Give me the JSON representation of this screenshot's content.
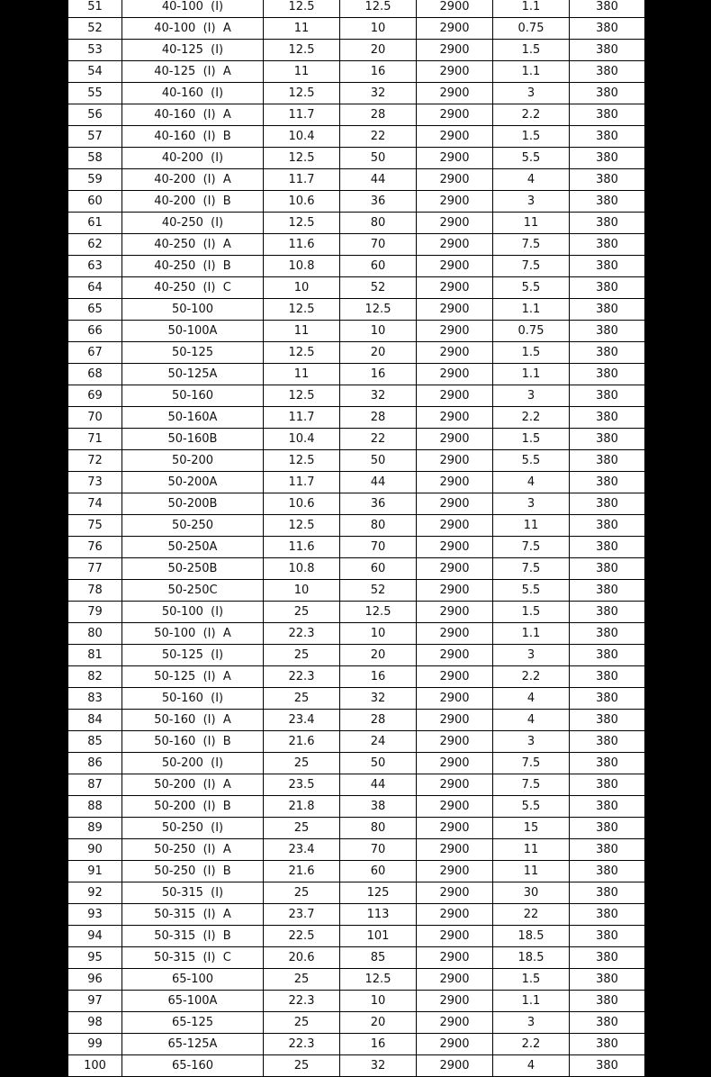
{
  "table": {
    "rows": [
      [
        "51",
        "40-100  (I)",
        "12.5",
        "12.5",
        "2900",
        "1.1",
        "380"
      ],
      [
        "52",
        "40-100  (I)  A",
        "11",
        "10",
        "2900",
        "0.75",
        "380"
      ],
      [
        "53",
        "40-125  (I)",
        "12.5",
        "20",
        "2900",
        "1.5",
        "380"
      ],
      [
        "54",
        "40-125  (I)  A",
        "11",
        "16",
        "2900",
        "1.1",
        "380"
      ],
      [
        "55",
        "40-160  (I)",
        "12.5",
        "32",
        "2900",
        "3",
        "380"
      ],
      [
        "56",
        "40-160  (I)  A",
        "11.7",
        "28",
        "2900",
        "2.2",
        "380"
      ],
      [
        "57",
        "40-160  (I)  B",
        "10.4",
        "22",
        "2900",
        "1.5",
        "380"
      ],
      [
        "58",
        "40-200  (I)",
        "12.5",
        "50",
        "2900",
        "5.5",
        "380"
      ],
      [
        "59",
        "40-200  (I)  A",
        "11.7",
        "44",
        "2900",
        "4",
        "380"
      ],
      [
        "60",
        "40-200  (I)  B",
        "10.6",
        "36",
        "2900",
        "3",
        "380"
      ],
      [
        "61",
        "40-250  (I)",
        "12.5",
        "80",
        "2900",
        "11",
        "380"
      ],
      [
        "62",
        "40-250  (I)  A",
        "11.6",
        "70",
        "2900",
        "7.5",
        "380"
      ],
      [
        "63",
        "40-250  (I)  B",
        "10.8",
        "60",
        "2900",
        "7.5",
        "380"
      ],
      [
        "64",
        "40-250  (I)  C",
        "10",
        "52",
        "2900",
        "5.5",
        "380"
      ],
      [
        "65",
        "50-100",
        "12.5",
        "12.5",
        "2900",
        "1.1",
        "380"
      ],
      [
        "66",
        "50-100A",
        "11",
        "10",
        "2900",
        "0.75",
        "380"
      ],
      [
        "67",
        "50-125",
        "12.5",
        "20",
        "2900",
        "1.5",
        "380"
      ],
      [
        "68",
        "50-125A",
        "11",
        "16",
        "2900",
        "1.1",
        "380"
      ],
      [
        "69",
        "50-160",
        "12.5",
        "32",
        "2900",
        "3",
        "380"
      ],
      [
        "70",
        "50-160A",
        "11.7",
        "28",
        "2900",
        "2.2",
        "380"
      ],
      [
        "71",
        "50-160B",
        "10.4",
        "22",
        "2900",
        "1.5",
        "380"
      ],
      [
        "72",
        "50-200",
        "12.5",
        "50",
        "2900",
        "5.5",
        "380"
      ],
      [
        "73",
        "50-200A",
        "11.7",
        "44",
        "2900",
        "4",
        "380"
      ],
      [
        "74",
        "50-200B",
        "10.6",
        "36",
        "2900",
        "3",
        "380"
      ],
      [
        "75",
        "50-250",
        "12.5",
        "80",
        "2900",
        "11",
        "380"
      ],
      [
        "76",
        "50-250A",
        "11.6",
        "70",
        "2900",
        "7.5",
        "380"
      ],
      [
        "77",
        "50-250B",
        "10.8",
        "60",
        "2900",
        "7.5",
        "380"
      ],
      [
        "78",
        "50-250C",
        "10",
        "52",
        "2900",
        "5.5",
        "380"
      ],
      [
        "79",
        "50-100  (I)",
        "25",
        "12.5",
        "2900",
        "1.5",
        "380"
      ],
      [
        "80",
        "50-100  (I)  A",
        "22.3",
        "10",
        "2900",
        "1.1",
        "380"
      ],
      [
        "81",
        "50-125  (I)",
        "25",
        "20",
        "2900",
        "3",
        "380"
      ],
      [
        "82",
        "50-125  (I)  A",
        "22.3",
        "16",
        "2900",
        "2.2",
        "380"
      ],
      [
        "83",
        "50-160  (I)",
        "25",
        "32",
        "2900",
        "4",
        "380"
      ],
      [
        "84",
        "50-160  (I)  A",
        "23.4",
        "28",
        "2900",
        "4",
        "380"
      ],
      [
        "85",
        "50-160  (I)  B",
        "21.6",
        "24",
        "2900",
        "3",
        "380"
      ],
      [
        "86",
        "50-200  (I)",
        "25",
        "50",
        "2900",
        "7.5",
        "380"
      ],
      [
        "87",
        "50-200  (I)  A",
        "23.5",
        "44",
        "2900",
        "7.5",
        "380"
      ],
      [
        "88",
        "50-200  (I)  B",
        "21.8",
        "38",
        "2900",
        "5.5",
        "380"
      ],
      [
        "89",
        "50-250  (I)",
        "25",
        "80",
        "2900",
        "15",
        "380"
      ],
      [
        "90",
        "50-250  (I)  A",
        "23.4",
        "70",
        "2900",
        "11",
        "380"
      ],
      [
        "91",
        "50-250  (I)  B",
        "21.6",
        "60",
        "2900",
        "11",
        "380"
      ],
      [
        "92",
        "50-315  (I)",
        "25",
        "125",
        "2900",
        "30",
        "380"
      ],
      [
        "93",
        "50-315  (I)  A",
        "23.7",
        "113",
        "2900",
        "22",
        "380"
      ],
      [
        "94",
        "50-315  (I)  B",
        "22.5",
        "101",
        "2900",
        "18.5",
        "380"
      ],
      [
        "95",
        "50-315  (I)  C",
        "20.6",
        "85",
        "2900",
        "18.5",
        "380"
      ],
      [
        "96",
        "65-100",
        "25",
        "12.5",
        "2900",
        "1.5",
        "380"
      ],
      [
        "97",
        "65-100A",
        "22.3",
        "10",
        "2900",
        "1.1",
        "380"
      ],
      [
        "98",
        "65-125",
        "25",
        "20",
        "2900",
        "3",
        "380"
      ],
      [
        "99",
        "65-125A",
        "22.3",
        "16",
        "2900",
        "2.2",
        "380"
      ],
      [
        "100",
        "65-160",
        "25",
        "32",
        "2900",
        "4",
        "380"
      ]
    ]
  }
}
